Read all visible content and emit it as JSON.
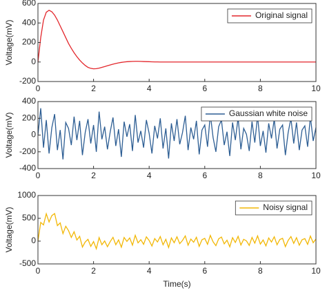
{
  "chart_data": [
    {
      "type": "line",
      "ylabel": "Voltage(mV)",
      "xlim": [
        0,
        10
      ],
      "xticks": [
        0,
        2,
        4,
        6,
        8,
        10
      ],
      "ylim": [
        -200,
        600
      ],
      "yticks": [
        -200,
        0,
        200,
        400,
        600
      ],
      "legend": "upper right",
      "x": [
        0,
        0.1,
        0.2,
        0.3,
        0.4,
        0.5,
        0.6,
        0.7,
        0.8,
        0.9,
        1,
        1.1,
        1.2,
        1.3,
        1.4,
        1.5,
        1.6,
        1.7,
        1.8,
        1.9,
        2,
        2.1,
        2.2,
        2.3,
        2.4,
        2.5,
        2.6,
        2.7,
        2.8,
        2.9,
        3,
        3.1,
        3.2,
        3.3,
        3.4,
        3.5,
        3.6,
        3.7,
        3.8,
        3.9,
        4,
        4.1,
        4.2,
        4.3,
        4.4,
        4.5,
        4.6,
        4.7,
        4.8,
        4.9,
        5,
        5.1,
        5.2,
        5.3,
        5.4,
        5.5,
        5.6,
        5.7,
        5.8,
        5.9,
        6,
        6.1,
        6.2,
        6.3,
        6.4,
        6.5,
        6.6,
        6.7,
        6.8,
        6.9,
        7,
        7.1,
        7.2,
        7.3,
        7.4,
        7.5,
        7.6,
        7.7,
        7.8,
        7.9,
        8,
        8.1,
        8.2,
        8.3,
        8.4,
        8.5,
        8.6,
        8.7,
        8.8,
        8.9,
        9,
        9.1,
        9.2,
        9.3,
        9.4,
        9.5,
        9.6,
        9.7,
        9.8,
        9.9,
        10
      ],
      "series": [
        {
          "name": "Original signal",
          "color": "#e3262b",
          "values": [
            0,
            250,
            430,
            510,
            530,
            515,
            480,
            430,
            370,
            310,
            250,
            190,
            140,
            95,
            55,
            20,
            -10,
            -35,
            -55,
            -65,
            -70,
            -68,
            -63,
            -55,
            -47,
            -38,
            -30,
            -22,
            -15,
            -9,
            -4,
            0,
            3,
            5,
            6,
            7,
            7,
            6,
            5,
            4,
            3,
            2,
            1,
            1,
            0,
            0,
            0,
            0,
            0,
            0,
            0,
            0,
            0,
            0,
            0,
            0,
            0,
            0,
            0,
            0,
            0,
            0,
            0,
            0,
            0,
            0,
            0,
            0,
            0,
            0,
            0,
            0,
            0,
            0,
            0,
            0,
            0,
            0,
            0,
            0,
            0,
            0,
            0,
            0,
            0,
            0,
            0,
            0,
            0,
            0,
            0,
            0,
            0,
            0,
            0,
            0,
            0,
            0,
            0,
            0,
            0
          ]
        }
      ]
    },
    {
      "type": "line",
      "ylabel": "Voltage(mV)",
      "xlim": [
        0,
        10
      ],
      "xticks": [
        0,
        2,
        4,
        6,
        8,
        10
      ],
      "ylim": [
        -400,
        400
      ],
      "yticks": [
        -400,
        -200,
        0,
        200,
        400
      ],
      "legend": "upper right",
      "x": [
        0,
        0.1,
        0.2,
        0.3,
        0.4,
        0.5,
        0.6,
        0.7,
        0.8,
        0.9,
        1,
        1.1,
        1.2,
        1.3,
        1.4,
        1.5,
        1.6,
        1.7,
        1.8,
        1.9,
        2,
        2.1,
        2.2,
        2.3,
        2.4,
        2.5,
        2.6,
        2.7,
        2.8,
        2.9,
        3,
        3.1,
        3.2,
        3.3,
        3.4,
        3.5,
        3.6,
        3.7,
        3.8,
        3.9,
        4,
        4.1,
        4.2,
        4.3,
        4.4,
        4.5,
        4.6,
        4.7,
        4.8,
        4.9,
        5,
        5.1,
        5.2,
        5.3,
        5.4,
        5.5,
        5.6,
        5.7,
        5.8,
        5.9,
        6,
        6.1,
        6.2,
        6.3,
        6.4,
        6.5,
        6.6,
        6.7,
        6.8,
        6.9,
        7,
        7.1,
        7.2,
        7.3,
        7.4,
        7.5,
        7.6,
        7.7,
        7.8,
        7.9,
        8,
        8.1,
        8.2,
        8.3,
        8.4,
        8.5,
        8.6,
        8.7,
        8.8,
        8.9,
        9,
        9.1,
        9.2,
        9.3,
        9.4,
        9.5,
        9.6,
        9.7,
        9.8,
        9.9,
        10
      ],
      "series": [
        {
          "name": "Gaussian white noise",
          "color": "#2c5d93",
          "values": [
            0,
            320,
            -150,
            180,
            -220,
            90,
            250,
            -180,
            60,
            -290,
            150,
            80,
            -120,
            220,
            -60,
            170,
            -240,
            30,
            190,
            -100,
            120,
            -200,
            280,
            -50,
            100,
            -170,
            40,
            210,
            -130,
            70,
            -260,
            160,
            -20,
            130,
            -190,
            240,
            -90,
            50,
            -150,
            180,
            20,
            -220,
            110,
            -40,
            200,
            -160,
            80,
            -280,
            140,
            -70,
            190,
            -110,
            30,
            230,
            -180,
            90,
            -50,
            170,
            -230,
            60,
            120,
            -140,
            250,
            -30,
            -200,
            100,
            180,
            -120,
            40,
            -250,
            150,
            -60,
            210,
            -170,
            80,
            10,
            -190,
            160,
            -90,
            230,
            -130,
            50,
            -210,
            140,
            -40,
            190,
            -160,
            70,
            120,
            -240,
            30,
            200,
            -100,
            150,
            -180,
            60,
            110,
            -140,
            220,
            -70,
            90
          ]
        }
      ]
    },
    {
      "type": "line",
      "ylabel": "Voltage(mV)",
      "xlabel": "Time(s)",
      "xlim": [
        0,
        10
      ],
      "xticks": [
        0,
        2,
        4,
        6,
        8,
        10
      ],
      "ylim": [
        -500,
        1000
      ],
      "yticks": [
        -500,
        0,
        500,
        1000
      ],
      "legend": "upper right",
      "x": [
        0,
        0.1,
        0.2,
        0.3,
        0.4,
        0.5,
        0.6,
        0.7,
        0.8,
        0.9,
        1,
        1.1,
        1.2,
        1.3,
        1.4,
        1.5,
        1.6,
        1.7,
        1.8,
        1.9,
        2,
        2.1,
        2.2,
        2.3,
        2.4,
        2.5,
        2.6,
        2.7,
        2.8,
        2.9,
        3,
        3.1,
        3.2,
        3.3,
        3.4,
        3.5,
        3.6,
        3.7,
        3.8,
        3.9,
        4,
        4.1,
        4.2,
        4.3,
        4.4,
        4.5,
        4.6,
        4.7,
        4.8,
        4.9,
        5,
        5.1,
        5.2,
        5.3,
        5.4,
        5.5,
        5.6,
        5.7,
        5.8,
        5.9,
        6,
        6.1,
        6.2,
        6.3,
        6.4,
        6.5,
        6.6,
        6.7,
        6.8,
        6.9,
        7,
        7.1,
        7.2,
        7.3,
        7.4,
        7.5,
        7.6,
        7.7,
        7.8,
        7.9,
        8,
        8.1,
        8.2,
        8.3,
        8.4,
        8.5,
        8.6,
        8.7,
        8.8,
        8.9,
        9,
        9.1,
        9.2,
        9.3,
        9.4,
        9.5,
        9.6,
        9.7,
        9.8,
        9.9,
        10
      ],
      "series": [
        {
          "name": "Noisy signal",
          "color": "#f2b705",
          "values": [
            0,
            410,
            355,
            600,
            420,
            560,
            605,
            340,
            400,
            165,
            325,
            230,
            80,
            205,
            25,
            105,
            -130,
            -20,
            40,
            -115,
            -10,
            -168,
            77,
            -80,
            3,
            -123,
            -10,
            83,
            -80,
            26,
            -134,
            80,
            -7,
            70,
            -89,
            127,
            -38,
            31,
            -70,
            94,
            13,
            -108,
            56,
            -19,
            100,
            -80,
            40,
            -140,
            70,
            -35,
            95,
            -55,
            15,
            115,
            -90,
            45,
            -25,
            85,
            -115,
            30,
            60,
            -70,
            125,
            -15,
            -100,
            50,
            90,
            -60,
            20,
            -125,
            75,
            -30,
            105,
            -85,
            40,
            5,
            -95,
            80,
            -45,
            115,
            -65,
            25,
            -105,
            70,
            -20,
            95,
            -80,
            35,
            60,
            -120,
            15,
            100,
            -50,
            75,
            -90,
            30,
            55,
            -70,
            110,
            -35,
            45
          ]
        }
      ]
    }
  ]
}
